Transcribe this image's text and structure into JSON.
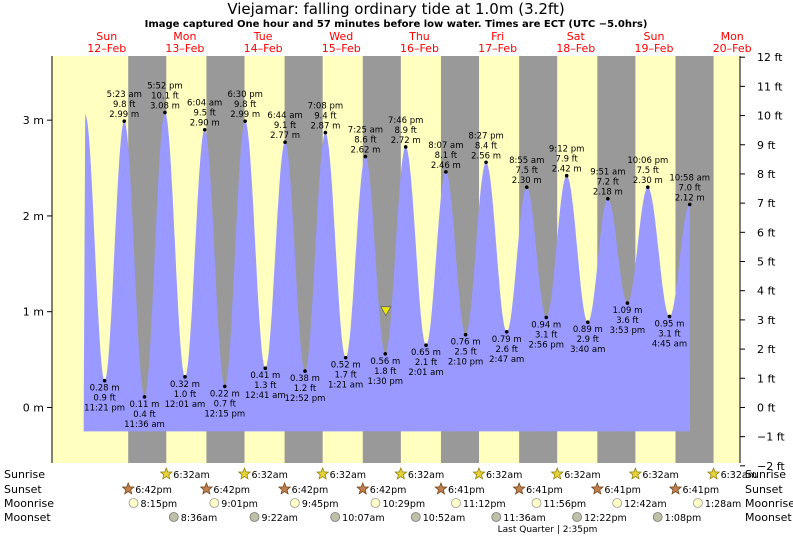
{
  "chart_data": {
    "type": "area",
    "title": "Viejamar: falling  ordinary tide at 1.0m (3.2ft)",
    "subtitle": "Image captured One hour and 57 minutes before low water. Times are ECT (UTC −5.0hrs)",
    "left_axis": {
      "unit": "m",
      "ylim": [
        -0.58,
        3.67
      ],
      "ticks": [
        {
          "v": 0,
          "label": "0 m"
        },
        {
          "v": 1,
          "label": "1 m"
        },
        {
          "v": 2,
          "label": "2 m"
        },
        {
          "v": 3,
          "label": "3 m"
        }
      ]
    },
    "right_axis": {
      "unit": "ft",
      "ticks": [
        {
          "v": -2,
          "label": "−2 ft"
        },
        {
          "v": -1,
          "label": "−1 ft"
        },
        {
          "v": 0,
          "label": "0 ft"
        },
        {
          "v": 1,
          "label": "1 ft"
        },
        {
          "v": 2,
          "label": "2 ft"
        },
        {
          "v": 3,
          "label": "3 ft"
        },
        {
          "v": 4,
          "label": "4 ft"
        },
        {
          "v": 5,
          "label": "5 ft"
        },
        {
          "v": 6,
          "label": "6 ft"
        },
        {
          "v": 7,
          "label": "7 ft"
        },
        {
          "v": 8,
          "label": "8 ft"
        },
        {
          "v": 9,
          "label": "9 ft"
        },
        {
          "v": 10,
          "label": "10 ft"
        },
        {
          "v": 11,
          "label": "11 ft"
        },
        {
          "v": 12,
          "label": "12 ft"
        }
      ]
    },
    "x_range_days": [
      -0.2,
      8.6
    ],
    "days": [
      {
        "d": 0,
        "day": "Sun",
        "date": "12–Feb"
      },
      {
        "d": 1,
        "day": "Mon",
        "date": "13–Feb"
      },
      {
        "d": 2,
        "day": "Tue",
        "date": "14–Feb"
      },
      {
        "d": 3,
        "day": "Wed",
        "date": "15–Feb"
      },
      {
        "d": 4,
        "day": "Thu",
        "date": "16–Feb"
      },
      {
        "d": 5,
        "day": "Fri",
        "date": "17–Feb"
      },
      {
        "d": 6,
        "day": "Sat",
        "date": "18–Feb"
      },
      {
        "d": 7,
        "day": "Sun",
        "date": "19–Feb"
      },
      {
        "d": 8,
        "day": "Mon",
        "date": "20–Feb"
      }
    ],
    "nights": [
      [
        0.775,
        1.262
      ],
      [
        1.775,
        2.262
      ],
      [
        2.775,
        3.262
      ],
      [
        3.775,
        4.262
      ],
      [
        4.775,
        5.262
      ],
      [
        5.775,
        6.262
      ],
      [
        6.775,
        7.262
      ],
      [
        7.775,
        8.262
      ]
    ],
    "extremes": [
      {
        "t": 0.225,
        "h": 3.06,
        "label": null
      },
      {
        "t": 0.473,
        "h": 0.28,
        "label": [
          "0.28 m",
          "0.9 ft",
          "11:21 pm"
        ]
      },
      {
        "t": 0.724,
        "h": 2.99,
        "label": [
          "5:23 am",
          "9.8 ft",
          "2.99 m"
        ]
      },
      {
        "t": 0.983,
        "h": 0.11,
        "label": [
          "0.11 m",
          "0.4 ft",
          "11:36 am"
        ]
      },
      {
        "t": 1.245,
        "h": 3.08,
        "label": [
          "5:52 pm",
          "10.1 ft",
          "3.08 m"
        ]
      },
      {
        "t": 1.501,
        "h": 0.32,
        "label": [
          "0.32 m",
          "1.0 ft",
          "12:01 am"
        ]
      },
      {
        "t": 1.753,
        "h": 2.9,
        "label": [
          "6:04 am",
          "9.5 ft",
          "2.90 m"
        ]
      },
      {
        "t": 2.01,
        "h": 0.22,
        "label": [
          "0.22 m",
          "0.7 ft",
          "12:15 pm"
        ]
      },
      {
        "t": 2.271,
        "h": 2.99,
        "label": [
          "6:30 pm",
          "9.8 ft",
          "2.99 m"
        ]
      },
      {
        "t": 2.528,
        "h": 0.41,
        "label": [
          "0.41 m",
          "1.3 ft",
          "12:41 am"
        ]
      },
      {
        "t": 2.781,
        "h": 2.77,
        "label": [
          "6:44 am",
          "9.1 ft",
          "2.77 m"
        ]
      },
      {
        "t": 3.036,
        "h": 0.38,
        "label": [
          "0.38 m",
          "1.2 ft",
          "12:52 pm"
        ]
      },
      {
        "t": 3.297,
        "h": 2.87,
        "label": [
          "7:08 pm",
          "9.4 ft",
          "2.87 m"
        ]
      },
      {
        "t": 3.556,
        "h": 0.52,
        "label": [
          "0.52 m",
          "1.7 ft",
          "1:21 am"
        ]
      },
      {
        "t": 3.809,
        "h": 2.62,
        "label": [
          "7:25 am",
          "8.6 ft",
          "2.62 m"
        ]
      },
      {
        "t": 4.063,
        "h": 0.56,
        "label": [
          "0.56 m",
          "1.8 ft",
          "1:30 pm"
        ]
      },
      {
        "t": 4.324,
        "h": 2.72,
        "label": [
          "7:46 pm",
          "8.9 ft",
          "2.72 m"
        ]
      },
      {
        "t": 4.584,
        "h": 0.65,
        "label": [
          "0.65 m",
          "2.1 ft",
          "2:01 am"
        ]
      },
      {
        "t": 4.838,
        "h": 2.46,
        "label": [
          "8:07 am",
          "8.1 ft",
          "2.46 m"
        ]
      },
      {
        "t": 5.09,
        "h": 0.76,
        "label": [
          "0.76 m",
          "2.5 ft",
          "2:10 pm"
        ]
      },
      {
        "t": 5.352,
        "h": 2.56,
        "label": [
          "8:27 pm",
          "8.4 ft",
          "2.56 m"
        ]
      },
      {
        "t": 5.616,
        "h": 0.79,
        "label": [
          "0.79 m",
          "2.6 ft",
          "2:47 am"
        ]
      },
      {
        "t": 5.872,
        "h": 2.3,
        "label": [
          "8:55 am",
          "7.5 ft",
          "2.30 m"
        ]
      },
      {
        "t": 6.122,
        "h": 0.94,
        "label": [
          "0.94 m",
          "3.1 ft",
          "2:56 pm"
        ]
      },
      {
        "t": 6.383,
        "h": 2.42,
        "label": [
          "9:12 pm",
          "7.9 ft",
          "2.42 m"
        ]
      },
      {
        "t": 6.653,
        "h": 0.89,
        "label": [
          "0.89 m",
          "2.9 ft",
          "3:40 am"
        ]
      },
      {
        "t": 6.91,
        "h": 2.18,
        "label": [
          "9:51 am",
          "7.2 ft",
          "2.18 m"
        ]
      },
      {
        "t": 7.16,
        "h": 1.09,
        "label": [
          "1.09 m",
          "3.6 ft",
          "3:53 pm"
        ]
      },
      {
        "t": 7.421,
        "h": 2.3,
        "label": [
          "10:06 pm",
          "7.5 ft",
          "2.30 m"
        ]
      },
      {
        "t": 7.698,
        "h": 0.95,
        "label": [
          "0.95 m",
          "3.1 ft",
          "4:45 am"
        ]
      },
      {
        "t": 7.957,
        "h": 2.12,
        "label": [
          "10:58 am",
          "7.0 ft",
          "2.12 m"
        ]
      }
    ],
    "plot_end_t": 7.96,
    "current": {
      "t": 4.07,
      "h": 1.0
    },
    "colors": {
      "day_bg": "#ffffc0",
      "night_bg": "#999999",
      "water": "#9999ff",
      "title": "#000000",
      "date": "#ff0000",
      "axis": "#000000"
    },
    "grid": false
  },
  "astro": {
    "row_labels": {
      "sunrise": "Sunrise",
      "sunset": "Sunset",
      "moonrise": "Moonrise",
      "moonset": "Moonset"
    },
    "sunrise": [
      {
        "t": 1.262,
        "label": "6:32am"
      },
      {
        "t": 2.262,
        "label": "6:32am"
      },
      {
        "t": 3.262,
        "label": "6:32am"
      },
      {
        "t": 4.262,
        "label": "6:32am"
      },
      {
        "t": 5.262,
        "label": "6:32am"
      },
      {
        "t": 6.262,
        "label": "6:32am"
      },
      {
        "t": 7.262,
        "label": "6:32am"
      },
      {
        "t": 8.262,
        "label": "6:32am"
      }
    ],
    "sunset": [
      {
        "t": 0.775,
        "label": "6:42pm"
      },
      {
        "t": 1.775,
        "label": "6:42pm"
      },
      {
        "t": 2.775,
        "label": "6:42pm"
      },
      {
        "t": 3.775,
        "label": "6:42pm"
      },
      {
        "t": 4.775,
        "label": "6:41pm"
      },
      {
        "t": 5.775,
        "label": "6:41pm"
      },
      {
        "t": 6.775,
        "label": "6:41pm"
      },
      {
        "t": 7.775,
        "label": "6:41pm"
      }
    ],
    "moonrise": [
      {
        "t": 0.843,
        "label": "8:15pm"
      },
      {
        "t": 1.876,
        "label": "9:01pm"
      },
      {
        "t": 2.906,
        "label": "9:45pm"
      },
      {
        "t": 3.937,
        "label": "10:29pm"
      },
      {
        "t": 4.967,
        "label": "11:12pm"
      },
      {
        "t": 5.997,
        "label": "11:56pm"
      },
      {
        "t": 7.029,
        "label": "12:42am"
      },
      {
        "t": 8.061,
        "label": "1:28am"
      }
    ],
    "moonset": [
      {
        "t": 1.358,
        "label": "8:36am"
      },
      {
        "t": 2.39,
        "label": "9:22am"
      },
      {
        "t": 3.422,
        "label": "10:07am"
      },
      {
        "t": 4.453,
        "label": "10:52am"
      },
      {
        "t": 5.483,
        "label": "11:36am"
      },
      {
        "t": 6.516,
        "label": "12:22pm"
      },
      {
        "t": 7.547,
        "label": "1:08pm"
      }
    ],
    "moon_phase": "Last Quarter | 2:35pm"
  }
}
